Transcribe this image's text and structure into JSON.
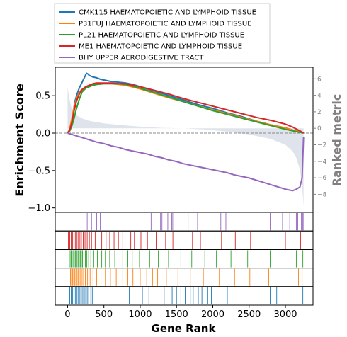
{
  "chart_data": {
    "type": "line",
    "xlabel": "Gene Rank",
    "ylabel": "Enrichment Score",
    "y2label": "Ranked metric",
    "xlim": [
      -170,
      3380
    ],
    "ylim": [
      -1.06,
      0.88
    ],
    "y2lim": [
      -10.2,
      7.4
    ],
    "xticks": [
      0,
      500,
      1000,
      1500,
      2000,
      2500,
      3000
    ],
    "yticks": [
      -1.0,
      -0.5,
      0.0,
      0.5
    ],
    "ytick_labels": [
      "−1.0",
      "−0.5",
      "0.0",
      "0.5"
    ],
    "y2ticks": [
      -8,
      -6,
      -4,
      -2,
      0,
      2,
      4,
      6
    ],
    "y2tick_labels": [
      "−8",
      "−6",
      "−4",
      "−2",
      "0",
      "2",
      "4",
      "6"
    ],
    "legend_position": "top (outside plot)",
    "series": [
      {
        "name": "CMK115 HAEMATOPOIETIC AND LYMPHOID TISSUE",
        "color": "#1f77b4",
        "x": [
          0,
          30,
          60,
          80,
          100,
          130,
          160,
          200,
          230,
          260,
          280,
          300,
          350,
          400,
          450,
          500,
          600,
          700,
          800,
          900,
          1000,
          1200,
          1400,
          1600,
          1800,
          2000,
          2200,
          2400,
          2600,
          2800,
          3000,
          3100,
          3200,
          3250
        ],
        "y": [
          0.0,
          0.05,
          0.18,
          0.3,
          0.42,
          0.52,
          0.6,
          0.68,
          0.74,
          0.8,
          0.79,
          0.77,
          0.75,
          0.74,
          0.72,
          0.71,
          0.69,
          0.68,
          0.67,
          0.65,
          0.62,
          0.56,
          0.5,
          0.44,
          0.38,
          0.33,
          0.27,
          0.22,
          0.16,
          0.11,
          0.07,
          0.04,
          0.02,
          0.0
        ]
      },
      {
        "name": "P31FUJ HAEMATOPOIETIC AND LYMPHOID TISSUE",
        "color": "#ff7f0e",
        "x": [
          0,
          30,
          60,
          90,
          120,
          150,
          180,
          220,
          260,
          300,
          350,
          400,
          500,
          600,
          700,
          800,
          1000,
          1200,
          1400,
          1600,
          1800,
          2000,
          2200,
          2400,
          2600,
          2800,
          3000,
          3100,
          3200,
          3250
        ],
        "y": [
          0.0,
          0.06,
          0.2,
          0.35,
          0.45,
          0.52,
          0.57,
          0.6,
          0.62,
          0.63,
          0.64,
          0.65,
          0.66,
          0.66,
          0.65,
          0.64,
          0.59,
          0.53,
          0.47,
          0.42,
          0.36,
          0.31,
          0.26,
          0.21,
          0.16,
          0.11,
          0.07,
          0.04,
          0.02,
          0.0
        ]
      },
      {
        "name": "PL21 HAEMATOPOIETIC AND LYMPHOID TISSUE",
        "color": "#2ca02c",
        "x": [
          0,
          30,
          60,
          90,
          120,
          160,
          200,
          250,
          300,
          350,
          400,
          500,
          600,
          700,
          800,
          1000,
          1200,
          1400,
          1600,
          1800,
          2000,
          2200,
          2400,
          2600,
          2800,
          3000,
          3100,
          3200,
          3250
        ],
        "y": [
          0.0,
          0.03,
          0.1,
          0.2,
          0.32,
          0.45,
          0.55,
          0.6,
          0.62,
          0.64,
          0.65,
          0.66,
          0.66,
          0.66,
          0.65,
          0.6,
          0.54,
          0.48,
          0.42,
          0.36,
          0.3,
          0.25,
          0.2,
          0.15,
          0.1,
          0.05,
          0.03,
          0.01,
          0.0
        ]
      },
      {
        "name": "ME1 HAEMATOPOIETIC AND LYMPHOID TISSUE",
        "color": "#d62728",
        "x": [
          0,
          30,
          60,
          90,
          120,
          160,
          200,
          250,
          300,
          350,
          400,
          500,
          600,
          700,
          800,
          1000,
          1200,
          1400,
          1600,
          1800,
          2000,
          2200,
          2400,
          2600,
          2800,
          3000,
          3100,
          3200,
          3250
        ],
        "y": [
          0.0,
          0.04,
          0.15,
          0.3,
          0.42,
          0.52,
          0.58,
          0.62,
          0.64,
          0.66,
          0.67,
          0.67,
          0.67,
          0.66,
          0.66,
          0.62,
          0.57,
          0.52,
          0.46,
          0.41,
          0.36,
          0.31,
          0.26,
          0.21,
          0.17,
          0.12,
          0.08,
          0.03,
          0.0
        ]
      },
      {
        "name": "BHY UPPER AERODIGESTIVE TRACT",
        "color": "#9467bd",
        "x": [
          0,
          100,
          200,
          300,
          400,
          500,
          600,
          700,
          800,
          900,
          1000,
          1100,
          1200,
          1300,
          1400,
          1500,
          1600,
          1700,
          1800,
          1900,
          2000,
          2100,
          2200,
          2300,
          2400,
          2500,
          2600,
          2700,
          2800,
          2900,
          3000,
          3100,
          3150,
          3200,
          3230,
          3250
        ],
        "y": [
          0.0,
          -0.03,
          -0.06,
          -0.09,
          -0.12,
          -0.14,
          -0.17,
          -0.19,
          -0.22,
          -0.24,
          -0.26,
          -0.28,
          -0.31,
          -0.33,
          -0.36,
          -0.38,
          -0.41,
          -0.43,
          -0.45,
          -0.47,
          -0.49,
          -0.51,
          -0.53,
          -0.56,
          -0.58,
          -0.6,
          -0.63,
          -0.66,
          -0.69,
          -0.72,
          -0.75,
          -0.77,
          -0.75,
          -0.72,
          -0.6,
          -0.05
        ]
      }
    ],
    "ranked_metric": {
      "color": "#b8c4d4",
      "x": [
        0,
        20,
        50,
        100,
        200,
        300,
        500,
        700,
        1000,
        1300,
        1600,
        1900,
        2200,
        2500,
        2800,
        3000,
        3100,
        3150,
        3200,
        3230,
        3250
      ],
      "y": [
        5.0,
        3.8,
        2.6,
        1.7,
        1.2,
        0.9,
        0.6,
        0.4,
        0.2,
        0.05,
        0.0,
        -0.15,
        -0.4,
        -0.75,
        -1.3,
        -2.0,
        -2.8,
        -3.6,
        -5.0,
        -7.0,
        -9.5
      ]
    },
    "hits": [
      {
        "series": "BHY UPPER AERODIGESTIVE TRACT",
        "color": "#9467bd",
        "ranks": [
          270,
          330,
          400,
          450,
          790,
          1150,
          1280,
          1300,
          1380,
          1430,
          1440,
          1460,
          1660,
          1790,
          2110,
          2180,
          2790,
          2960,
          3060,
          3150,
          3170,
          3200,
          3220,
          3235,
          3245
        ]
      },
      {
        "series": "ME1 HAEMATOPOIETIC AND LYMPHOID TISSUE",
        "color": "#d62728",
        "ranks": [
          10,
          30,
          50,
          70,
          90,
          110,
          130,
          150,
          170,
          190,
          215,
          240,
          270,
          300,
          330,
          380,
          420,
          470,
          530,
          580,
          640,
          700,
          760,
          820,
          870,
          920,
          1010,
          1100,
          1220,
          1350,
          1450,
          1590,
          1720,
          1830,
          1990,
          2120,
          2310,
          2520,
          2800,
          3000,
          3210
        ]
      },
      {
        "series": "PL21 HAEMATOPOIETIC AND LYMPHOID TISSUE",
        "color": "#2ca02c",
        "ranks": [
          20,
          35,
          50,
          60,
          75,
          90,
          105,
          115,
          130,
          145,
          160,
          175,
          190,
          205,
          225,
          245,
          265,
          290,
          320,
          360,
          410,
          470,
          520,
          580,
          650,
          760,
          830,
          890,
          990,
          1130,
          1250,
          1390,
          1560,
          1710,
          1890,
          2050,
          2250,
          2480,
          2790,
          3150,
          3240
        ]
      },
      {
        "series": "P31FUJ HAEMATOPOIETIC AND LYMPHOID TISSUE",
        "color": "#ff7f0e",
        "ranks": [
          20,
          40,
          55,
          70,
          85,
          100,
          115,
          130,
          145,
          160,
          180,
          200,
          220,
          245,
          275,
          310,
          350,
          400,
          460,
          520,
          590,
          670,
          760,
          830,
          900,
          1000,
          1090,
          1170,
          1240,
          1360,
          1520,
          1690,
          1870,
          2090,
          2300,
          2510,
          2770,
          3180,
          3230
        ]
      },
      {
        "series": "CMK115 HAEMATOPOIETIC AND LYMPHOID TISSUE",
        "color": "#1f77b4",
        "ranks": [
          30,
          50,
          70,
          90,
          110,
          130,
          150,
          170,
          190,
          210,
          230,
          250,
          270,
          290,
          320,
          340,
          850,
          1030,
          1120,
          1330,
          1440,
          1500,
          1560,
          1620,
          1690,
          1730,
          1800,
          1850,
          1930,
          1980,
          2200,
          2790,
          2880,
          3240
        ]
      }
    ]
  }
}
